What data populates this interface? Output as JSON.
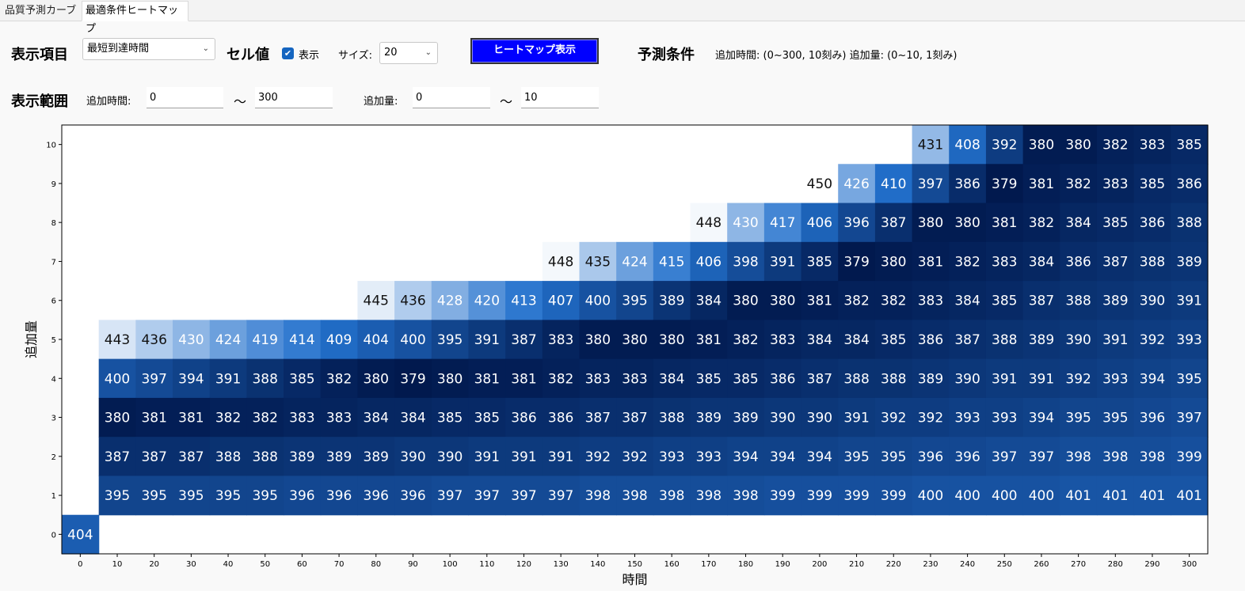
{
  "tabs": [
    {
      "label": "品質予測カーブ"
    },
    {
      "label": "最適条件ヒートマップ"
    }
  ],
  "controls": {
    "display_item_label": "表示項目",
    "display_item_value": "最短到達時間",
    "cell_value_label": "セル値",
    "show_checkbox_label": "表示",
    "size_label": "サイズ:",
    "size_value": "20",
    "heatmap_button_label": "ヒートマップ表示",
    "prediction_label": "予測条件",
    "prediction_text": "追加時間: (0~300, 10刻み) 追加量: (0~10, 1刻み)",
    "range_label": "表示範囲",
    "add_time_label": "追加時間:",
    "add_time_min": "0",
    "add_time_max": "300",
    "add_amount_label": "追加量:",
    "add_amount_min": "0",
    "add_amount_max": "10",
    "tilde": "～"
  },
  "chart_data": {
    "type": "heatmap",
    "xlabel": "時間",
    "ylabel": "追加量",
    "x": [
      0,
      10,
      20,
      30,
      40,
      50,
      60,
      70,
      80,
      90,
      100,
      110,
      120,
      130,
      140,
      150,
      160,
      170,
      180,
      190,
      200,
      210,
      220,
      230,
      240,
      250,
      260,
      270,
      280,
      290,
      300
    ],
    "y": [
      0,
      1,
      2,
      3,
      4,
      5,
      6,
      7,
      8,
      9,
      10
    ],
    "colorscale": {
      "low": "#01194e",
      "mid": "#2270cc",
      "high": "#ffffff",
      "min": 379,
      "max": 450
    },
    "rows": [
      {
        "y": 10,
        "start": 230,
        "values": [
          431,
          408,
          392,
          380,
          380,
          382,
          383,
          385
        ]
      },
      {
        "y": 9,
        "start": 200,
        "values": [
          450,
          426,
          410,
          397,
          386,
          379,
          381,
          382,
          383,
          385,
          386
        ]
      },
      {
        "y": 8,
        "start": 170,
        "values": [
          448,
          430,
          417,
          406,
          396,
          387,
          380,
          380,
          381,
          382,
          384,
          385,
          386,
          388
        ]
      },
      {
        "y": 7,
        "start": 130,
        "values": [
          448,
          435,
          424,
          415,
          406,
          398,
          391,
          385,
          379,
          380,
          381,
          382,
          383,
          384,
          386,
          387,
          388,
          389
        ]
      },
      {
        "y": 6,
        "start": 80,
        "values": [
          445,
          436,
          428,
          420,
          413,
          407,
          400,
          395,
          389,
          384,
          380,
          380,
          381,
          382,
          382,
          383,
          384,
          385,
          387,
          388,
          389,
          390,
          391
        ]
      },
      {
        "y": 5,
        "start": 10,
        "values": [
          443,
          436,
          430,
          424,
          419,
          414,
          409,
          404,
          400,
          395,
          391,
          387,
          383,
          380,
          380,
          380,
          381,
          382,
          383,
          384,
          384,
          385,
          386,
          387,
          388,
          389,
          390,
          391,
          392,
          393
        ]
      },
      {
        "y": 4,
        "start": 10,
        "values": [
          400,
          397,
          394,
          391,
          388,
          385,
          382,
          380,
          379,
          380,
          381,
          381,
          382,
          383,
          383,
          384,
          385,
          385,
          386,
          387,
          388,
          388,
          389,
          390,
          391,
          391,
          392,
          393,
          394,
          395
        ]
      },
      {
        "y": 3,
        "start": 10,
        "values": [
          380,
          381,
          381,
          382,
          382,
          383,
          383,
          384,
          384,
          385,
          385,
          386,
          386,
          387,
          387,
          388,
          389,
          389,
          390,
          390,
          391,
          392,
          392,
          393,
          393,
          394,
          395,
          395,
          396,
          397
        ]
      },
      {
        "y": 2,
        "start": 10,
        "values": [
          387,
          387,
          387,
          388,
          388,
          389,
          389,
          389,
          390,
          390,
          391,
          391,
          391,
          392,
          392,
          393,
          393,
          394,
          394,
          394,
          395,
          395,
          396,
          396,
          397,
          397,
          398,
          398,
          398,
          399
        ]
      },
      {
        "y": 1,
        "start": 10,
        "values": [
          395,
          395,
          395,
          395,
          395,
          396,
          396,
          396,
          396,
          397,
          397,
          397,
          397,
          398,
          398,
          398,
          398,
          398,
          399,
          399,
          399,
          399,
          400,
          400,
          400,
          400,
          401,
          401,
          401,
          401
        ]
      },
      {
        "y": 0,
        "start": 0,
        "values": [
          404
        ]
      }
    ]
  }
}
